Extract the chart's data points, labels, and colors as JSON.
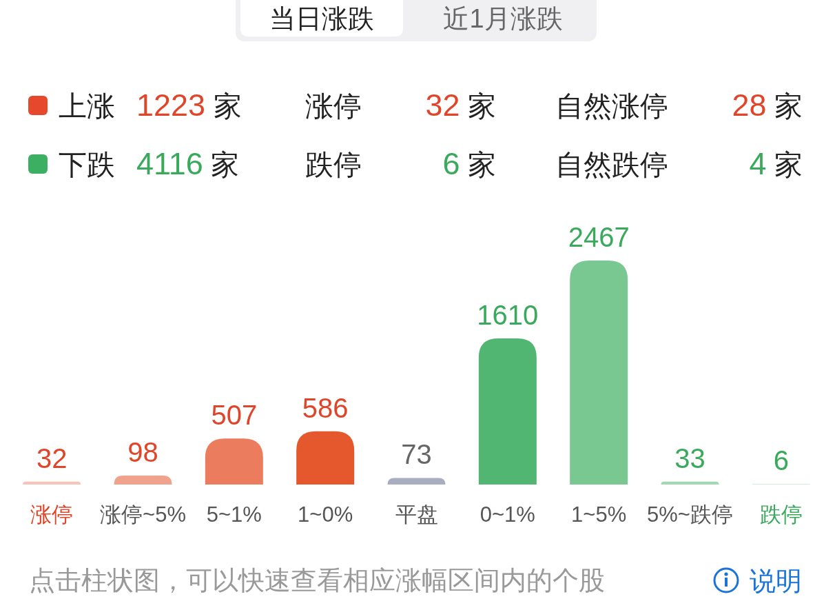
{
  "chart_data": [
    {
      "type": "other",
      "annotations": [
        "当日涨跌",
        "近1月涨跌",
        "上涨",
        "1223 家",
        "涨停",
        "32 家",
        "自然涨停",
        "28 家",
        "下跌",
        "4116 家",
        "跌停",
        "6 家",
        "自然跌停",
        "4 家"
      ]
    },
    {
      "type": "bar",
      "categories": [
        "涨停",
        "涨停~5%",
        "5~1%",
        "1~0%",
        "平盘",
        "0~1%",
        "1~5%",
        "5%~跌停",
        "跌停"
      ],
      "values": [
        32,
        98,
        507,
        586,
        73,
        1610,
        2467,
        33,
        6
      ],
      "colors": [
        "#f6c5b9",
        "#f0a28c",
        "#ec7c5e",
        "#e5572d",
        "#a9adc0",
        "#52b673",
        "#79c791",
        "#a2d9b2",
        "#c6e8d0"
      ],
      "data_labels": true,
      "annotations": [
        "点击柱状图，可以快速查看相应涨幅区间内的个股",
        "说明"
      ]
    }
  ]
}
